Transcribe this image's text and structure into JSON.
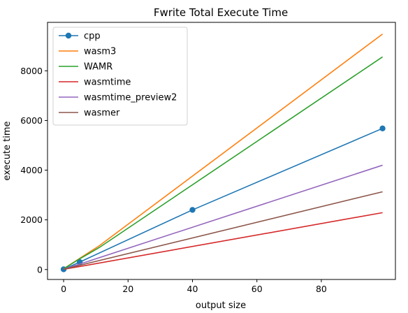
{
  "chart_data": {
    "type": "line",
    "title": "Fwrite Total Execute Time",
    "xlabel": "output size",
    "ylabel": "execute time",
    "xlim": [
      -5,
      103
    ],
    "ylim": [
      -400,
      9950
    ],
    "xticks": [
      0,
      20,
      40,
      60,
      80
    ],
    "yticks": [
      0,
      2000,
      4000,
      6000,
      8000
    ],
    "grid": false,
    "legend_position": "top-left",
    "series": [
      {
        "name": "cpp",
        "color": "#1f77b4",
        "marker": true,
        "points": [
          [
            0,
            10
          ],
          [
            5,
            300
          ],
          [
            40,
            2400
          ],
          [
            99,
            5680
          ]
        ]
      },
      {
        "name": "wasm3",
        "color": "#ff7f0e",
        "marker": false,
        "points": [
          [
            0,
            30
          ],
          [
            5,
            450
          ],
          [
            11,
            950
          ],
          [
            99,
            9480
          ]
        ]
      },
      {
        "name": "WAMR",
        "color": "#2ca02c",
        "marker": false,
        "points": [
          [
            0,
            30
          ],
          [
            5,
            430
          ],
          [
            11,
            880
          ],
          [
            99,
            8560
          ]
        ]
      },
      {
        "name": "wasmtime",
        "color": "#d62728",
        "marker": false,
        "points": [
          [
            0,
            10
          ],
          [
            5,
            120
          ],
          [
            99,
            2290
          ]
        ]
      },
      {
        "name": "wasmtime_preview2",
        "color": "#9467bd",
        "marker": false,
        "points": [
          [
            0,
            15
          ],
          [
            5,
            220
          ],
          [
            99,
            4200
          ]
        ]
      },
      {
        "name": "wasmer",
        "color": "#8c564b",
        "marker": false,
        "points": [
          [
            0,
            12
          ],
          [
            5,
            170
          ],
          [
            99,
            3130
          ]
        ]
      }
    ]
  }
}
